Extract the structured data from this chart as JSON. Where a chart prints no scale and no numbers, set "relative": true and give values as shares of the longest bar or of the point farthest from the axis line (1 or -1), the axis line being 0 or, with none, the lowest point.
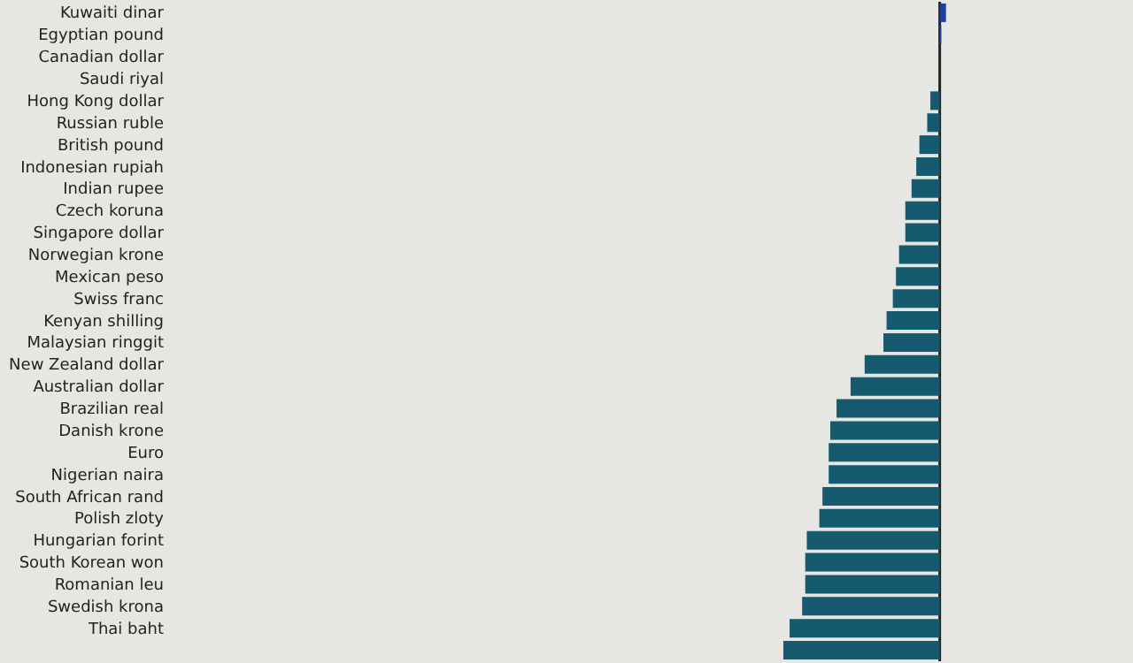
{
  "chart_data": {
    "type": "bar",
    "orientation": "horizontal",
    "relative": true,
    "grid": false,
    "categories": [
      "Kuwaiti dinar",
      "Egyptian pound",
      "Canadian dollar",
      "Saudi riyal",
      "Hong Kong dollar",
      "Russian ruble",
      "British pound",
      "Indonesian rupiah",
      "Indian rupee",
      "Czech koruna",
      "Singapore dollar",
      "Norwegian krone",
      "Mexican peso",
      "Swiss franc",
      "Kenyan shilling",
      "Malaysian ringgit",
      "New Zealand dollar",
      "Australian dollar",
      "Brazilian real",
      "Danish krone",
      "Euro",
      "Nigerian naira",
      "South African rand",
      "Polish zloty",
      "Hungarian forint",
      "South Korean won",
      "Romanian leu",
      "Swedish krona",
      "Thai baht",
      null
    ],
    "values": [
      0.04,
      0.01,
      0,
      0,
      -0.06,
      -0.08,
      -0.13,
      -0.15,
      -0.18,
      -0.22,
      -0.22,
      -0.26,
      -0.28,
      -0.3,
      -0.34,
      -0.36,
      -0.48,
      -0.57,
      -0.66,
      -0.7,
      -0.71,
      -0.71,
      -0.75,
      -0.77,
      -0.85,
      -0.86,
      -0.86,
      -0.88,
      -0.96,
      -1
    ],
    "colors": [
      "#1c3f9e",
      "#1c3f9e",
      "#155a6e",
      "#155a6e",
      "#155a6e",
      "#155a6e",
      "#155a6e",
      "#155a6e",
      "#155a6e",
      "#155a6e",
      "#155a6e",
      "#155a6e",
      "#155a6e",
      "#155a6e",
      "#155a6e",
      "#155a6e",
      "#155a6e",
      "#155a6e",
      "#155a6e",
      "#155a6e",
      "#155a6e",
      "#155a6e",
      "#155a6e",
      "#155a6e",
      "#155a6e",
      "#155a6e",
      "#155a6e",
      "#155a6e",
      "#155a6e",
      "#155a6e"
    ]
  }
}
